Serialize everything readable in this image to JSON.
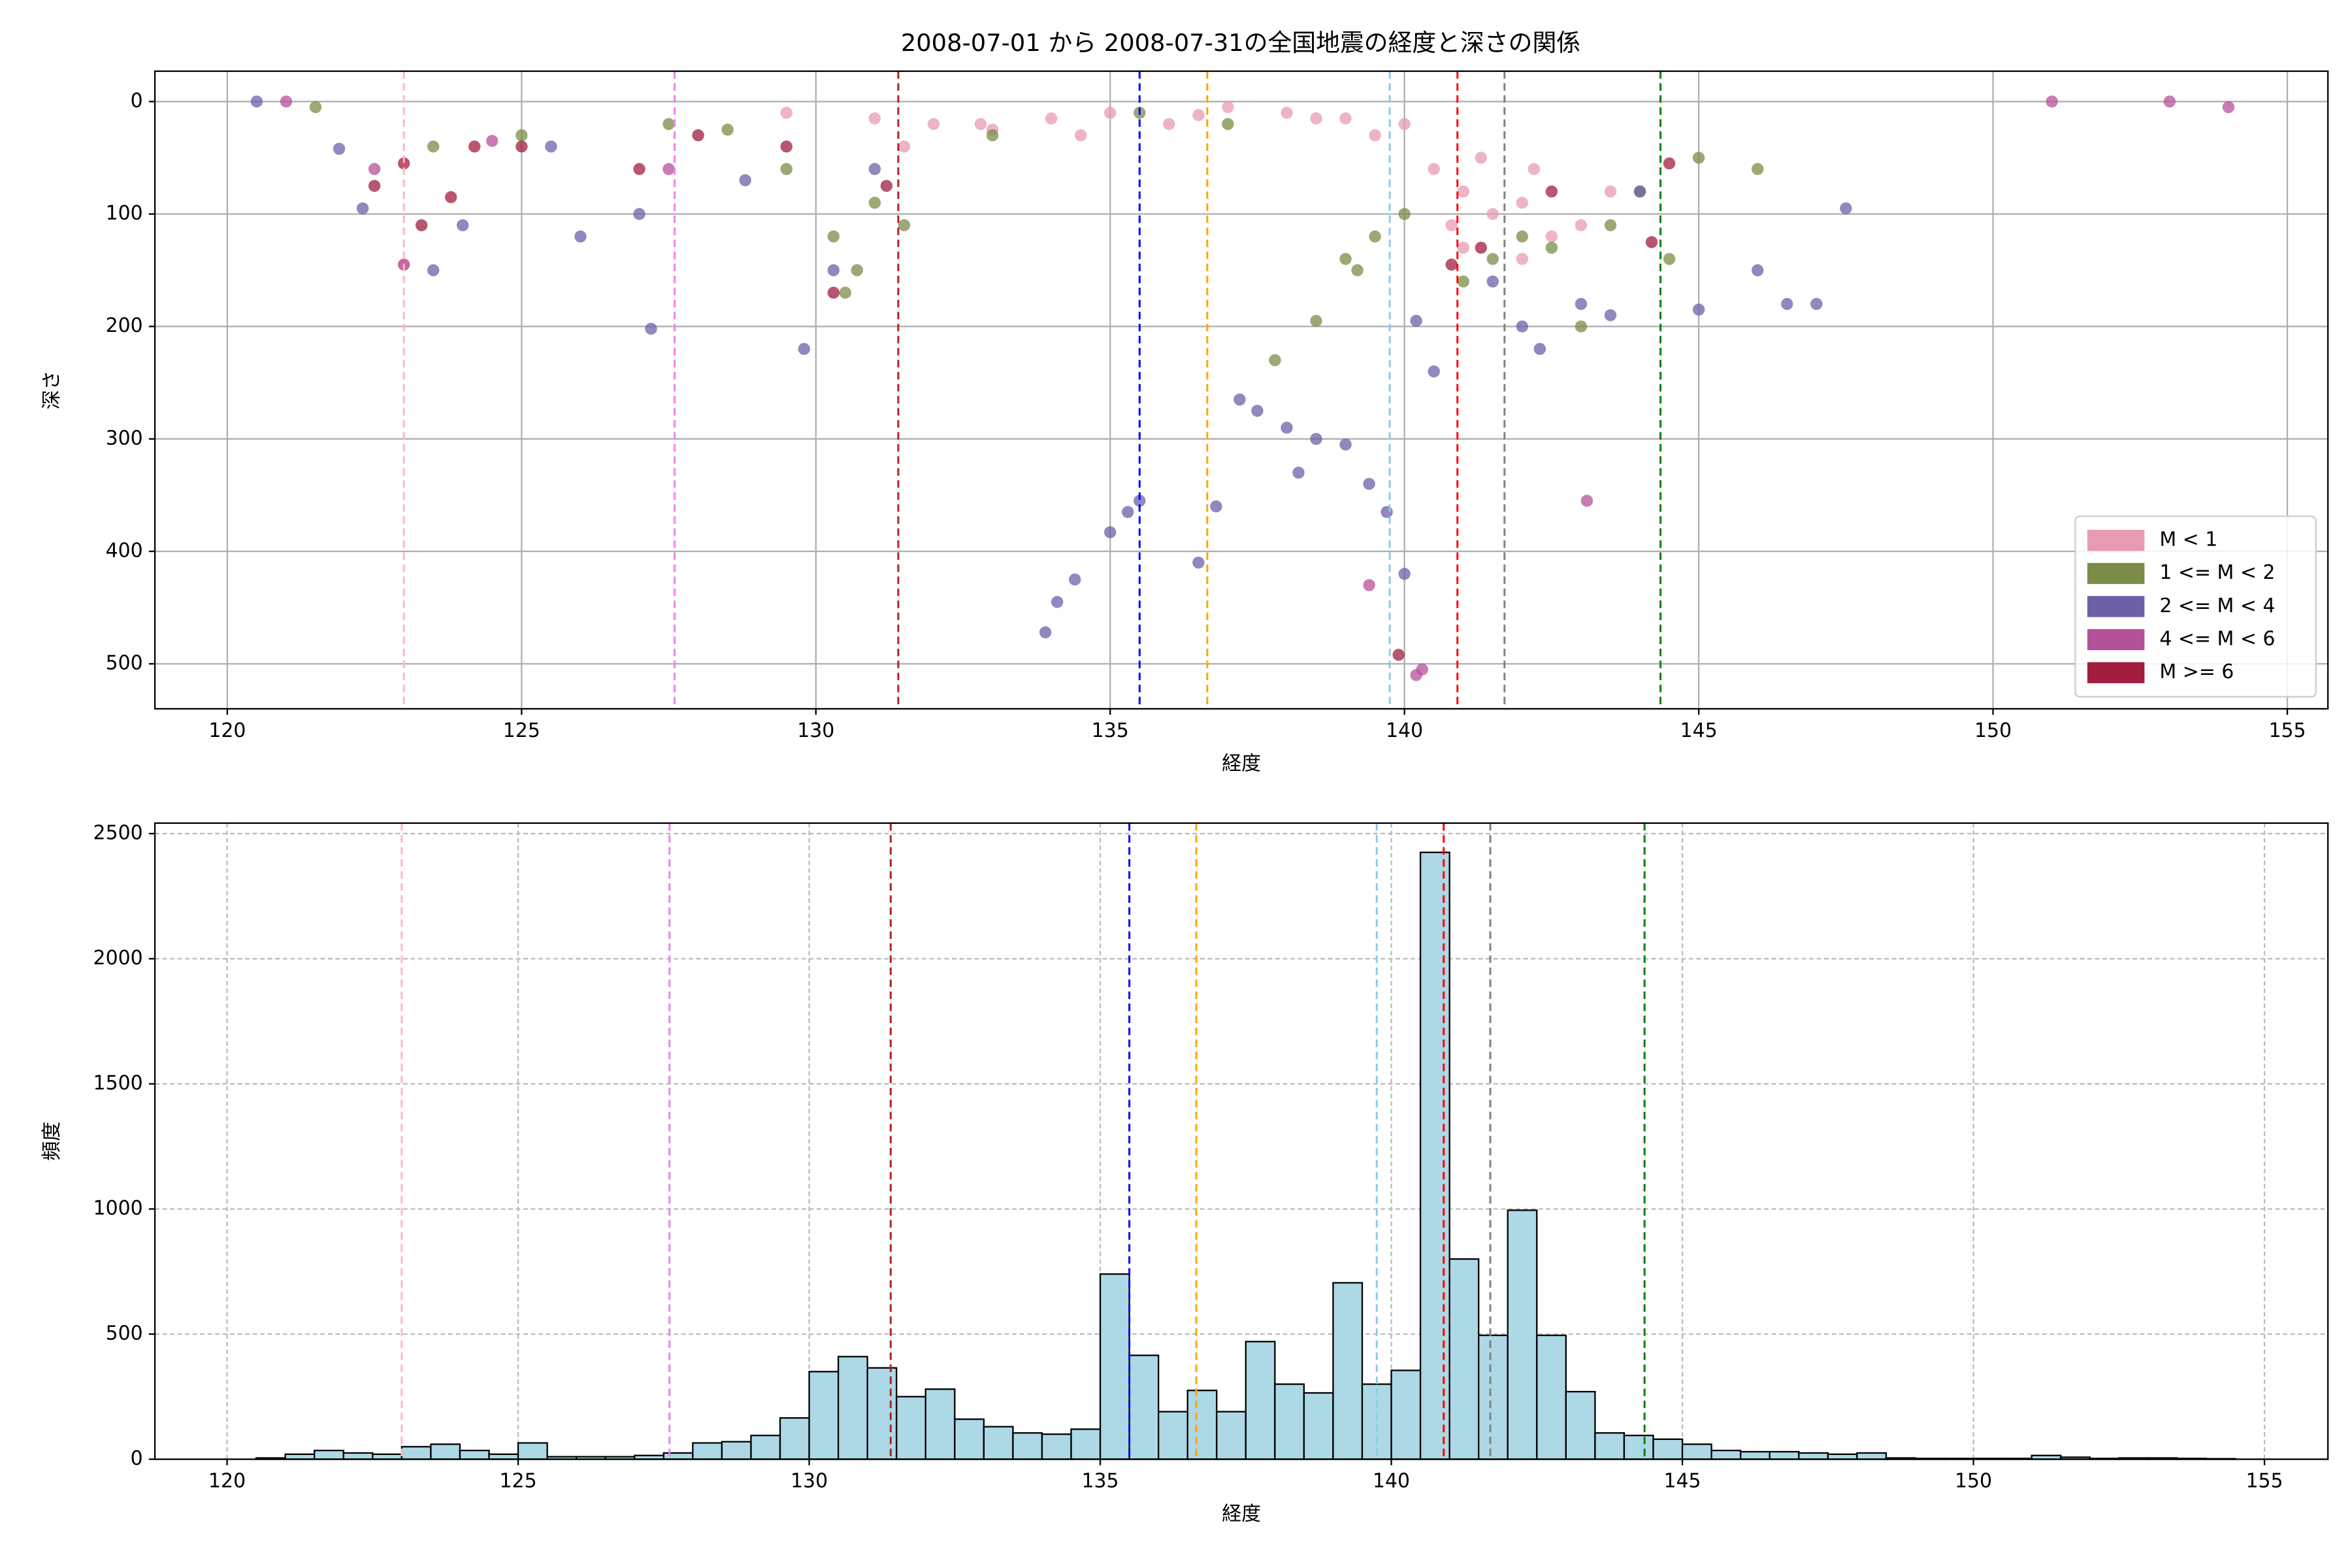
{
  "chart_data": [
    {
      "type": "scatter",
      "title": "2008-07-01 から 2008-07-31の全国地震の経度と深さの関係",
      "xlabel": "経度",
      "ylabel": "深さ",
      "xlim": [
        118.77,
        155.69
      ],
      "ylim": [
        540,
        -27
      ],
      "xticks": [
        120,
        125,
        130,
        135,
        140,
        145,
        150,
        155
      ],
      "yticks": [
        0,
        100,
        200,
        300,
        400,
        500
      ],
      "grid": true,
      "grid_style": "solid",
      "legend": "lower right",
      "vlines": [
        {
          "x": 123.0,
          "color": "#ffb6c1"
        },
        {
          "x": 127.6,
          "color": "#ee82ee"
        },
        {
          "x": 131.4,
          "color": "#b22222"
        },
        {
          "x": 135.5,
          "color": "#0000ff"
        },
        {
          "x": 136.65,
          "color": "#ffa500"
        },
        {
          "x": 139.75,
          "color": "#87ceeb"
        },
        {
          "x": 140.9,
          "color": "#ff0000"
        },
        {
          "x": 141.7,
          "color": "#808080"
        },
        {
          "x": 144.35,
          "color": "#008000"
        }
      ],
      "series": [
        {
          "name": "M < 1",
          "color": "#e89ab0",
          "x": [
            129.5,
            131,
            132,
            133,
            134,
            135,
            136,
            137,
            138,
            139,
            140,
            140.5,
            141,
            141.5,
            142,
            142.5,
            143,
            141,
            142,
            143.5,
            123,
            131.5,
            134.5,
            138.5,
            141.3,
            142.2,
            140.8,
            139.5,
            132.8,
            136.5
          ],
          "y": [
            10,
            15,
            20,
            25,
            15,
            10,
            20,
            5,
            10,
            15,
            20,
            60,
            80,
            100,
            90,
            120,
            110,
            130,
            140,
            80,
            145,
            40,
            30,
            15,
            50,
            60,
            110,
            30,
            20,
            12
          ]
        },
        {
          "name": "1 <= M < 2",
          "color": "#7a8c45",
          "x": [
            121.5,
            123.5,
            125,
            127.5,
            128.5,
            129.5,
            130.3,
            130.7,
            131,
            131.5,
            133,
            135.5,
            137,
            138.5,
            139,
            139.5,
            140,
            141,
            141.5,
            142,
            142.5,
            143,
            143.5,
            144,
            145,
            146,
            144.5,
            130.5,
            137.8,
            139.2
          ],
          "y": [
            5,
            40,
            30,
            20,
            25,
            60,
            120,
            150,
            90,
            110,
            30,
            10,
            20,
            195,
            140,
            120,
            100,
            160,
            140,
            120,
            130,
            200,
            110,
            80,
            50,
            60,
            140,
            170,
            230,
            150
          ]
        },
        {
          "name": "2 <= M < 4",
          "color": "#6e5fa8",
          "x": [
            120.5,
            121.9,
            123.5,
            124,
            126,
            127,
            127.2,
            128.8,
            129.8,
            130.3,
            131,
            133.9,
            134.1,
            134.4,
            135,
            135.3,
            135.5,
            136.5,
            137.2,
            137.5,
            138,
            138.5,
            139,
            139.4,
            139.7,
            140,
            140.2,
            140.5,
            141.5,
            142,
            142.3,
            143,
            143.5,
            144,
            145,
            146,
            146.5,
            147,
            147.5,
            138.2,
            136.8,
            125.5,
            122.3
          ],
          "y": [
            0,
            42,
            150,
            110,
            120,
            100,
            202,
            70,
            220,
            150,
            60,
            472,
            445,
            425,
            383,
            365,
            355,
            410,
            265,
            275,
            290,
            300,
            305,
            340,
            365,
            420,
            195,
            240,
            160,
            200,
            220,
            180,
            190,
            80,
            185,
            150,
            180,
            180,
            95,
            330,
            360,
            40,
            95
          ]
        },
        {
          "name": "4 <= M < 6",
          "color": "#b5509a",
          "x": [
            121,
            122.5,
            123,
            124.5,
            127.5,
            139.4,
            140.2,
            140.3,
            143.1,
            153,
            154,
            151
          ],
          "y": [
            0,
            60,
            145,
            35,
            60,
            430,
            510,
            505,
            355,
            0,
            5,
            0
          ]
        },
        {
          "name": "M >= 6",
          "color": "#a01d3f",
          "x": [
            122.5,
            123,
            123.3,
            123.8,
            124.2,
            125,
            127,
            128,
            129.5,
            130.3,
            131.2,
            139.9,
            140.8,
            141.3,
            144.2,
            144.5,
            142.5
          ],
          "y": [
            75,
            55,
            110,
            85,
            40,
            40,
            60,
            30,
            40,
            170,
            75,
            492,
            145,
            130,
            125,
            55,
            80
          ]
        }
      ]
    },
    {
      "type": "histogram",
      "xlabel": "経度",
      "ylabel": "頻度",
      "xlim": [
        118.76,
        156.09
      ],
      "ylim": [
        0,
        2542
      ],
      "xticks": [
        120,
        125,
        130,
        135,
        140,
        145,
        150,
        155
      ],
      "yticks": [
        0,
        500,
        1000,
        1500,
        2000,
        2500
      ],
      "grid": true,
      "grid_style": "dashed",
      "color": "#add8e6",
      "vlines": [
        {
          "x": 123.0,
          "color": "#ffb6c1"
        },
        {
          "x": 127.6,
          "color": "#ee82ee"
        },
        {
          "x": 131.4,
          "color": "#b22222"
        },
        {
          "x": 135.5,
          "color": "#0000ff"
        },
        {
          "x": 136.65,
          "color": "#ffa500"
        },
        {
          "x": 139.75,
          "color": "#87ceeb"
        },
        {
          "x": 140.9,
          "color": "#ff0000"
        },
        {
          "x": 141.7,
          "color": "#808080"
        },
        {
          "x": 144.35,
          "color": "#008000"
        }
      ],
      "bins": [
        120.5,
        121,
        121.5,
        122,
        122.5,
        123,
        123.5,
        124,
        124.5,
        125,
        125.5,
        126,
        126.5,
        127,
        127.5,
        128,
        128.5,
        129,
        129.5,
        130,
        130.5,
        131,
        131.5,
        132,
        132.5,
        133,
        133.5,
        134,
        134.5,
        135,
        135.5,
        136,
        136.5,
        137,
        137.5,
        138,
        138.5,
        139,
        139.5,
        140,
        140.5,
        141,
        141.5,
        142,
        142.5,
        143,
        143.5,
        144,
        144.5,
        145,
        145.5,
        146,
        146.5,
        147,
        147.5,
        148,
        148.5,
        149,
        149.5,
        150,
        150.5,
        151,
        151.5,
        152,
        152.5,
        153,
        153.5,
        154,
        154.5
      ],
      "values": [
        5,
        20,
        35,
        25,
        20,
        50,
        60,
        35,
        20,
        65,
        10,
        10,
        10,
        15,
        25,
        65,
        70,
        95,
        165,
        350,
        410,
        365,
        250,
        280,
        160,
        130,
        105,
        100,
        120,
        740,
        415,
        190,
        275,
        190,
        470,
        300,
        265,
        705,
        300,
        355,
        2425,
        800,
        495,
        995,
        495,
        270,
        105,
        95,
        80,
        60,
        35,
        30,
        30,
        25,
        20,
        25,
        5,
        3,
        3,
        3,
        3,
        15,
        8,
        3,
        5,
        5,
        3,
        2
      ]
    }
  ]
}
